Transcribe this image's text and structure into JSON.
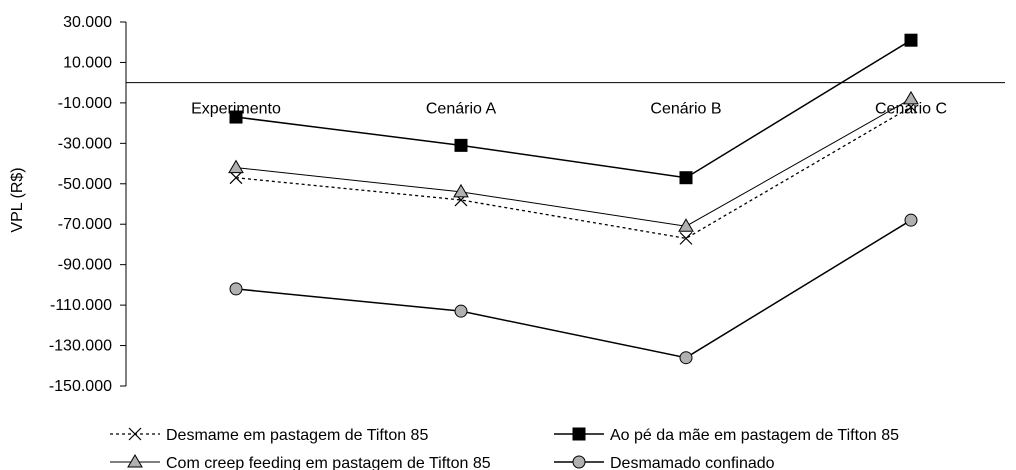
{
  "chart_data": {
    "type": "line",
    "ylabel": "VPL (R$)",
    "ylim": [
      -150000,
      30000
    ],
    "ytick_values": [
      30000,
      10000,
      -10000,
      -30000,
      -50000,
      -70000,
      -90000,
      -110000,
      -130000,
      -150000
    ],
    "ytick_labels": [
      "30.000",
      "10.000",
      "-10.000",
      "-30.000",
      "-50.000",
      "-70.000",
      "-90.000",
      "-110.000",
      "-130.000",
      "-150.000"
    ],
    "categories": [
      "Experimento",
      "Cenário A",
      "Cenário B",
      "Cenário C"
    ],
    "series": [
      {
        "name": "Desmame em pastagem de Tifton 85",
        "values": [
          -47000,
          -58000,
          -77000,
          -12000
        ],
        "color": "#000000",
        "marker": "x",
        "dash": "dotted"
      },
      {
        "name": "Ao pé da mãe em pastagem de Tifton 85",
        "values": [
          -17000,
          -31000,
          -47000,
          21000
        ],
        "color": "#000000",
        "marker": "square",
        "dash": "solid"
      },
      {
        "name": "Com creep feeding em pastagem de Tifton 85",
        "values": [
          -42000,
          -54000,
          -71000,
          -8000
        ],
        "color": "#000000",
        "marker": "triangle",
        "dash": "solid-thin"
      },
      {
        "name": "Desmamado confinado",
        "values": [
          -102000,
          -113000,
          -136000,
          -68000
        ],
        "color": "#000000",
        "marker": "circle",
        "dash": "solid"
      }
    ],
    "grid": false,
    "legend_position": "bottom"
  }
}
